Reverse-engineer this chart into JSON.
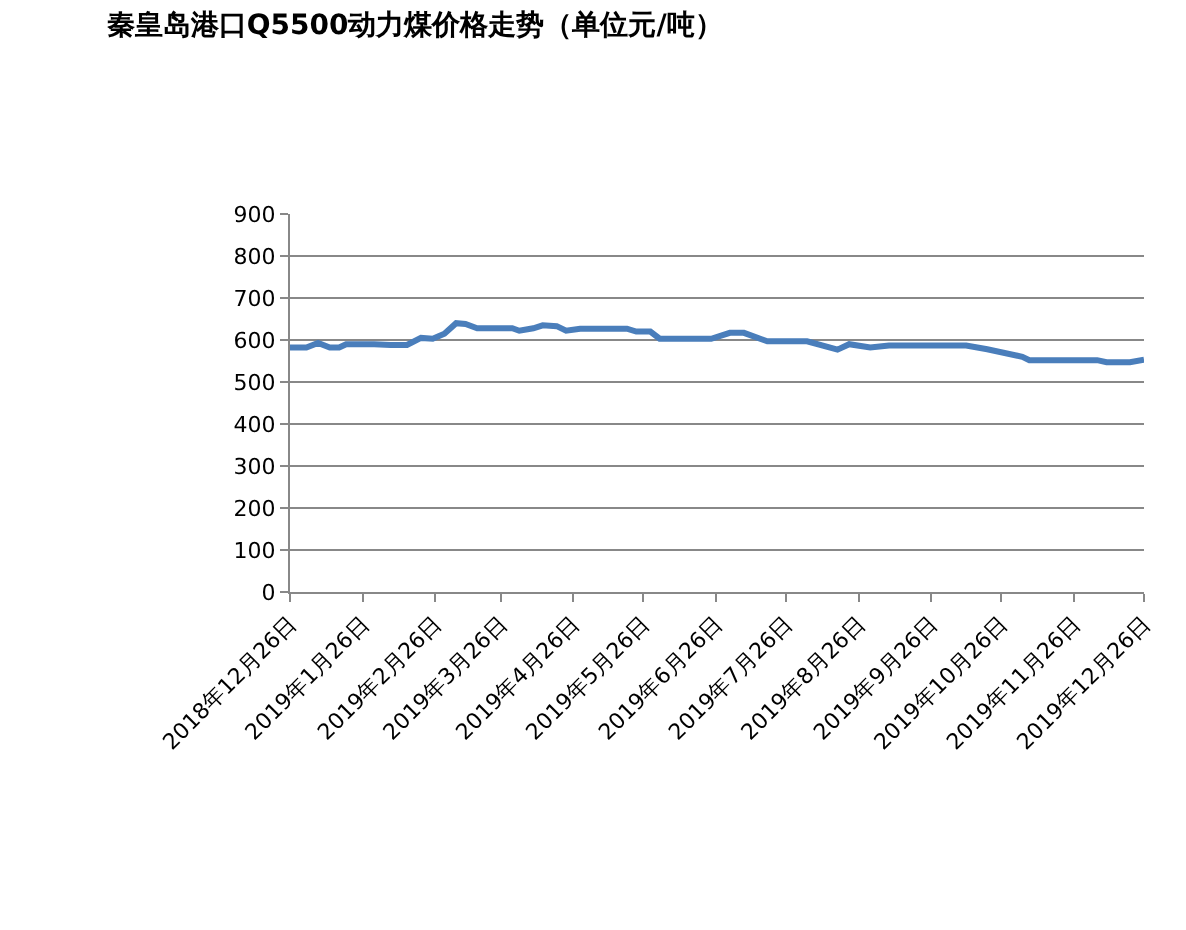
{
  "chart_data": {
    "type": "line",
    "title": "秦皇岛港口Q5500动力煤价格走势（单位元/吨）",
    "x": [
      "2018-12-26",
      "2019-01-02",
      "2019-01-07",
      "2019-01-12",
      "2019-01-16",
      "2019-01-19",
      "2019-01-31",
      "2019-02-07",
      "2019-02-14",
      "2019-02-20",
      "2019-02-25",
      "2019-03-02",
      "2019-03-07",
      "2019-03-11",
      "2019-03-16",
      "2019-03-31",
      "2019-04-03",
      "2019-04-09",
      "2019-04-13",
      "2019-04-19",
      "2019-04-23",
      "2019-04-29",
      "2019-05-19",
      "2019-05-23",
      "2019-05-29",
      "2019-06-02",
      "2019-06-19",
      "2019-06-24",
      "2019-07-02",
      "2019-07-08",
      "2019-07-18",
      "2019-08-04",
      "2019-08-17",
      "2019-08-22",
      "2019-08-31",
      "2019-09-08",
      "2019-10-11",
      "2019-10-20",
      "2019-11-04",
      "2019-11-07",
      "2019-12-06",
      "2019-12-10",
      "2019-12-20",
      "2019-12-26"
    ],
    "series": [
      {
        "color": "#4a7ebb",
        "values": [
          582,
          582,
          593,
          582,
          582,
          590,
          590,
          588,
          588,
          605,
          603,
          615,
          640,
          638,
          628,
          628,
          622,
          628,
          635,
          633,
          622,
          627,
          627,
          620,
          620,
          603,
          603,
          603,
          617,
          617,
          597,
          597,
          577,
          590,
          582,
          587,
          587,
          578,
          560,
          552,
          552,
          547,
          547,
          553
        ]
      }
    ],
    "xlim": [
      "2018-12-26",
      "2019-12-26"
    ],
    "xticks": [
      {
        "value": "2018-12-26",
        "label": "2018年12月26日"
      },
      {
        "value": "2019-01-26",
        "label": "2019年1月26日"
      },
      {
        "value": "2019-02-26",
        "label": "2019年2月26日"
      },
      {
        "value": "2019-03-26",
        "label": "2019年3月26日"
      },
      {
        "value": "2019-04-26",
        "label": "2019年4月26日"
      },
      {
        "value": "2019-05-26",
        "label": "2019年5月26日"
      },
      {
        "value": "2019-06-26",
        "label": "2019年6月26日"
      },
      {
        "value": "2019-07-26",
        "label": "2019年7月26日"
      },
      {
        "value": "2019-08-26",
        "label": "2019年8月26日"
      },
      {
        "value": "2019-09-26",
        "label": "2019年9月26日"
      },
      {
        "value": "2019-10-26",
        "label": "2019年10月26日"
      },
      {
        "value": "2019-11-26",
        "label": "2019年11月26日"
      },
      {
        "value": "2019-12-26",
        "label": "2019年12月26日"
      }
    ],
    "ylim": [
      0,
      900
    ],
    "yticks": [
      0,
      100,
      200,
      300,
      400,
      500,
      600,
      700,
      800,
      900
    ],
    "grid": "y",
    "marker": "none",
    "line_style": "solid"
  }
}
